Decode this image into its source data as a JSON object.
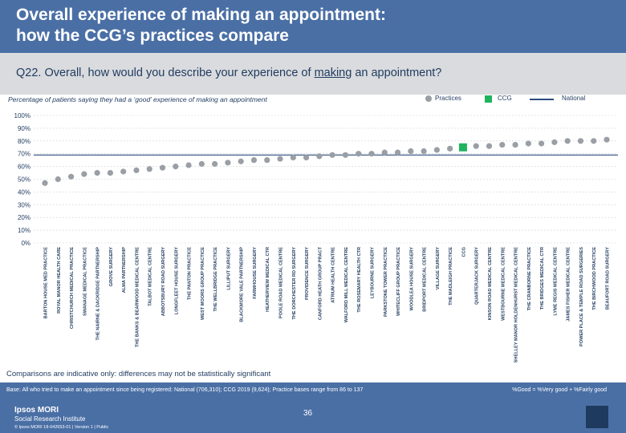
{
  "header": {
    "title": "Overall experience of making an appointment:\nhow the CCG’s practices compare"
  },
  "question": {
    "prefix": "Q22. Overall, how would you describe your experience of ",
    "underlined": "making",
    "suffix": " an appointment?"
  },
  "legend": {
    "practices": "Practices",
    "ccg": "CCG",
    "national": "National"
  },
  "colors": {
    "practice": "#9a9ea5",
    "ccg": "#1fb35e",
    "national": "#2b4c7e",
    "header": "#4a6fa5",
    "grid": "#cfd3d8"
  },
  "chart_data": {
    "type": "scatter",
    "title": "Percentage of patients saying they had a ‘good’ experience of making an appointment",
    "ylim": [
      0,
      100
    ],
    "yticks": [
      "0%",
      "10%",
      "20%",
      "30%",
      "40%",
      "50%",
      "60%",
      "70%",
      "80%",
      "90%",
      "100%"
    ],
    "ytick_values": [
      0,
      10,
      20,
      30,
      40,
      50,
      60,
      70,
      80,
      90,
      100
    ],
    "national_value": 69,
    "categories": [
      "BARTON HOUSE MED PRACTICE",
      "ROYAL MANOR HEALTH CARE",
      "CHRISTCHURCH MEDICAL PRACTICE",
      "SWANAGE MEDICAL PRACTICE",
      "THE NAIRNE & DACKRIDGE PARTNERSHIP",
      "GROVE SURGERY",
      "ALMA PARTNERSHIP",
      "THE BANKS & BEARWOOD MEDICAL CENTRE",
      "TALBOT MEDICAL CENTRE",
      "ABBOTSBURY ROAD SURGERY",
      "LONGFLEET HOUSE SURGERY",
      "THE PANTON PRACTICE",
      "WEST MOORS GROUP PRACTICE",
      "THE WELLBRIDGE PRACTICE",
      "LILLIPUT SURGERY",
      "BLACKMORE VALE PARTNERSHIP",
      "FARMHOUSE SURGERY",
      "HEATHERVIEW MEDICAL CTR",
      "POOLE ROAD MEDICAL CENTRE",
      "THE DORCHESTER RD SURGERY",
      "PROVIDENCE SURGERY",
      "CANFORD HEATH GROUP PRACT",
      "ATRIUM HEALTH CENTRE",
      "WALFORD MILL MEDICAL CENTRE",
      "THE ROSEMARY HEALTH CTR",
      "LEYBOURNE SURGERY",
      "PARKSTONE TOWER PRACTICE",
      "WHITECLIFF GROUP PRACTICE",
      "WOODLEA HOUSE SURGERY",
      "BRIDPORT MEDICAL CENTRE",
      "VILLAGE SURGERY",
      "THE MADLEIGH PRACTICE",
      "CCG",
      "QUARTERJACK SURGERY",
      "KINSON ROAD MEDICAL CENTRE",
      "WESTBOURNE MEDICAL CENTRE",
      "SHELLEY MANOR HOLDENHURST MEDICAL CENTRE",
      "THE CRANBORNE PRACTICE",
      "THE BRIDGES MEDICAL CTR",
      "LYME REGIS MEDICAL CENTRE",
      "JAMES FISHER MEDICAL CENTRE",
      "POWER PLACE & TEMPLE ROAD SURGERIES",
      "THE BIRCHWOOD PRACTICE",
      "BEAUFORT ROAD SURGERY"
    ],
    "values": [
      47,
      50,
      52,
      54,
      55,
      55,
      56,
      57,
      58,
      59,
      60,
      61,
      62,
      62,
      63,
      64,
      65,
      65,
      66,
      67,
      67,
      68,
      69,
      69,
      70,
      70,
      71,
      71,
      72,
      72,
      73,
      74,
      75,
      76,
      76,
      77,
      77,
      78,
      78,
      79,
      80,
      80,
      80,
      81
    ],
    "highlight_index": 32
  },
  "note": "Comparisons are indicative only: differences may not be statistically significant",
  "footer": {
    "base": "Base: All who tried to make an appointment since being registered: National (706,310); CCG 2019 (9,624); Practice bases range from 86 to 137",
    "key": "%Good = %Very good + %Fairly good",
    "logo_line1": "Ipsos MORI",
    "logo_line2": "Social Research Institute",
    "copyright": "© Ipsos MORI    18-042653-01 | Version 1 | Public",
    "page": "36"
  }
}
